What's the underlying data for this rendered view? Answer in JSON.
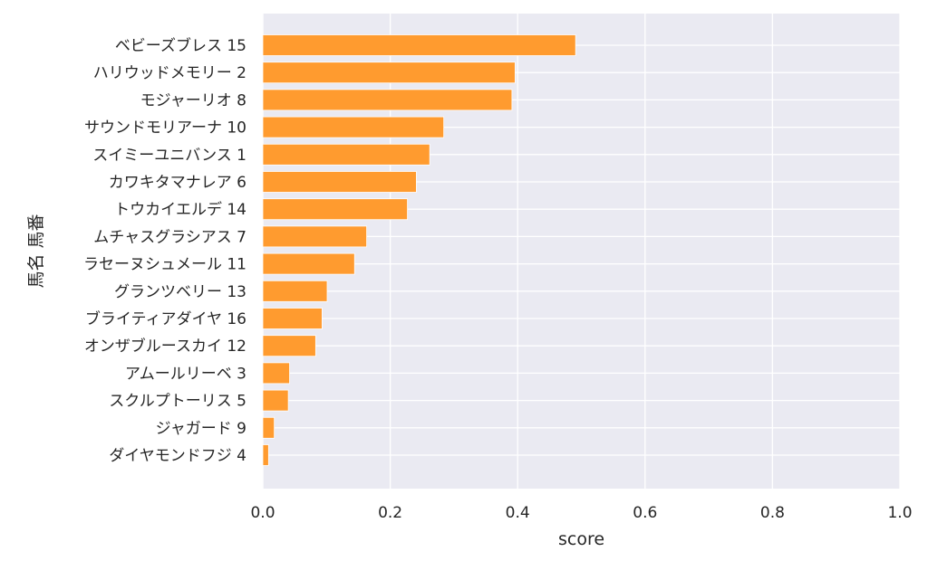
{
  "chart_data": {
    "type": "bar",
    "orientation": "horizontal",
    "title": "",
    "xlabel": "score",
    "ylabel": "馬名 馬番",
    "xlim": [
      0.0,
      1.0
    ],
    "xticks": [
      "0.0",
      "0.2",
      "0.4",
      "0.6",
      "0.8",
      "1.0"
    ],
    "grid": true,
    "bar_color": "#ff9b2f",
    "background_color": "#eaeaf2",
    "categories": [
      "ベビーズブレス 15",
      "ハリウッドメモリー 2",
      "モジャーリオ 8",
      "サウンドモリアーナ 10",
      "スイミーユニバンス 1",
      "カワキタマナレア 6",
      "トウカイエルデ 14",
      "ムチャスグラシアス 7",
      "ラセーヌシュメール 11",
      "グランツベリー 13",
      "ブライティアダイヤ 16",
      "オンザブルースカイ 12",
      "アムールリーベ 3",
      "スクルプトーリス 5",
      "ジャガード 9",
      "ダイヤモンドフジ 4"
    ],
    "values": [
      0.491,
      0.396,
      0.391,
      0.284,
      0.262,
      0.241,
      0.227,
      0.163,
      0.144,
      0.101,
      0.093,
      0.083,
      0.042,
      0.04,
      0.018,
      0.009
    ]
  }
}
